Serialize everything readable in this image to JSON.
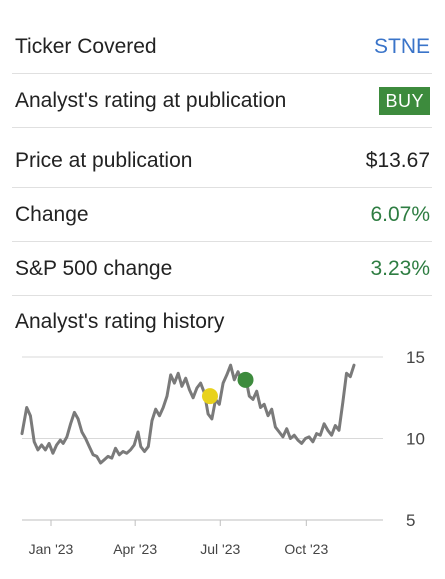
{
  "rows": {
    "ticker": {
      "label": "Ticker Covered",
      "value": "STNE"
    },
    "rating": {
      "label": "Analyst's rating at publication",
      "value": "BUY"
    },
    "price": {
      "label": "Price at publication",
      "value": "$13.67"
    },
    "change": {
      "label": "Change",
      "value": "6.07%"
    },
    "sp500": {
      "label": "S&P 500 change",
      "value": "3.23%"
    }
  },
  "history_title": "Analyst's rating history",
  "colors": {
    "link": "#3a74c9",
    "positive": "#2e7d42",
    "buy_badge": "#3d8b3d",
    "hold_marker": "#e8d21d",
    "buy_marker": "#3d8b3d",
    "line": "#7a7a7a"
  },
  "chart_data": {
    "type": "line",
    "x_tick_labels": [
      "Jan '23",
      "Apr '23",
      "Jul '23",
      "Oct '23"
    ],
    "y_tick_labels": [
      "15",
      "10",
      "5"
    ],
    "ylim": [
      5,
      15
    ],
    "y_ticks": [
      15,
      10,
      5
    ],
    "xlim": [
      "2022-12-01",
      "2023-12-22"
    ],
    "x_ticks": [
      "2023-01-01",
      "2023-04-01",
      "2023-07-01",
      "2023-10-01"
    ],
    "grid": "horizontal",
    "series": [
      {
        "points": [
          [
            "2022-12-01",
            10.3
          ],
          [
            "2022-12-06",
            11.9
          ],
          [
            "2022-12-10",
            11.4
          ],
          [
            "2022-12-14",
            9.8
          ],
          [
            "2022-12-18",
            9.3
          ],
          [
            "2022-12-22",
            9.6
          ],
          [
            "2022-12-26",
            9.3
          ],
          [
            "2022-12-30",
            9.7
          ],
          [
            "2023-01-03",
            9.1
          ],
          [
            "2023-01-07",
            9.6
          ],
          [
            "2023-01-11",
            9.9
          ],
          [
            "2023-01-14",
            9.7
          ],
          [
            "2023-01-18",
            10.1
          ],
          [
            "2023-01-22",
            10.9
          ],
          [
            "2023-01-26",
            11.6
          ],
          [
            "2023-01-30",
            11.2
          ],
          [
            "2023-02-03",
            10.4
          ],
          [
            "2023-02-07",
            10.0
          ],
          [
            "2023-02-11",
            9.5
          ],
          [
            "2023-02-15",
            9.0
          ],
          [
            "2023-02-19",
            8.9
          ],
          [
            "2023-02-23",
            8.5
          ],
          [
            "2023-02-27",
            8.7
          ],
          [
            "2023-03-03",
            8.9
          ],
          [
            "2023-03-07",
            8.8
          ],
          [
            "2023-03-11",
            9.4
          ],
          [
            "2023-03-15",
            9.0
          ],
          [
            "2023-03-19",
            9.2
          ],
          [
            "2023-03-23",
            9.1
          ],
          [
            "2023-03-27",
            9.3
          ],
          [
            "2023-03-31",
            9.6
          ],
          [
            "2023-04-04",
            10.4
          ],
          [
            "2023-04-07",
            9.5
          ],
          [
            "2023-04-11",
            9.2
          ],
          [
            "2023-04-15",
            9.5
          ],
          [
            "2023-04-19",
            11.1
          ],
          [
            "2023-04-23",
            11.8
          ],
          [
            "2023-04-27",
            11.4
          ],
          [
            "2023-05-01",
            11.9
          ],
          [
            "2023-05-05",
            12.6
          ],
          [
            "2023-05-09",
            13.9
          ],
          [
            "2023-05-13",
            13.4
          ],
          [
            "2023-05-17",
            14.0
          ],
          [
            "2023-05-21",
            13.2
          ],
          [
            "2023-05-25",
            13.7
          ],
          [
            "2023-05-29",
            13.0
          ],
          [
            "2023-06-02",
            12.5
          ],
          [
            "2023-06-06",
            13.1
          ],
          [
            "2023-06-10",
            13.4
          ],
          [
            "2023-06-14",
            12.8
          ],
          [
            "2023-06-18",
            11.5
          ],
          [
            "2023-06-22",
            11.2
          ],
          [
            "2023-06-26",
            12.4
          ],
          [
            "2023-06-30",
            12.1
          ],
          [
            "2023-07-04",
            13.4
          ],
          [
            "2023-07-08",
            13.9
          ],
          [
            "2023-07-12",
            14.5
          ],
          [
            "2023-07-16",
            13.6
          ],
          [
            "2023-07-20",
            14.1
          ],
          [
            "2023-07-24",
            13.5
          ],
          [
            "2023-07-28",
            13.8
          ],
          [
            "2023-08-01",
            12.6
          ],
          [
            "2023-08-05",
            12.4
          ],
          [
            "2023-08-09",
            12.9
          ],
          [
            "2023-08-13",
            11.9
          ],
          [
            "2023-08-17",
            12.1
          ],
          [
            "2023-08-21",
            11.4
          ],
          [
            "2023-08-25",
            11.8
          ],
          [
            "2023-08-29",
            10.7
          ],
          [
            "2023-09-02",
            10.4
          ],
          [
            "2023-09-06",
            10.1
          ],
          [
            "2023-09-10",
            10.6
          ],
          [
            "2023-09-14",
            10.0
          ],
          [
            "2023-09-18",
            10.2
          ],
          [
            "2023-09-22",
            9.9
          ],
          [
            "2023-09-26",
            9.7
          ],
          [
            "2023-09-30",
            10.0
          ],
          [
            "2023-10-04",
            10.1
          ],
          [
            "2023-10-08",
            9.8
          ],
          [
            "2023-10-12",
            10.3
          ],
          [
            "2023-10-16",
            10.2
          ],
          [
            "2023-10-20",
            10.9
          ],
          [
            "2023-10-24",
            10.5
          ],
          [
            "2023-10-28",
            10.2
          ],
          [
            "2023-11-01",
            10.8
          ],
          [
            "2023-11-05",
            10.5
          ],
          [
            "2023-11-09",
            12.2
          ],
          [
            "2023-11-13",
            14.0
          ],
          [
            "2023-11-17",
            13.8
          ],
          [
            "2023-11-21",
            14.5
          ]
        ]
      }
    ],
    "markers": [
      {
        "date": "2023-06-20",
        "value": 12.6,
        "rating": "hold",
        "color": "#e8d21d"
      },
      {
        "date": "2023-07-28",
        "value": 13.6,
        "rating": "buy",
        "color": "#3d8b3d"
      }
    ]
  }
}
